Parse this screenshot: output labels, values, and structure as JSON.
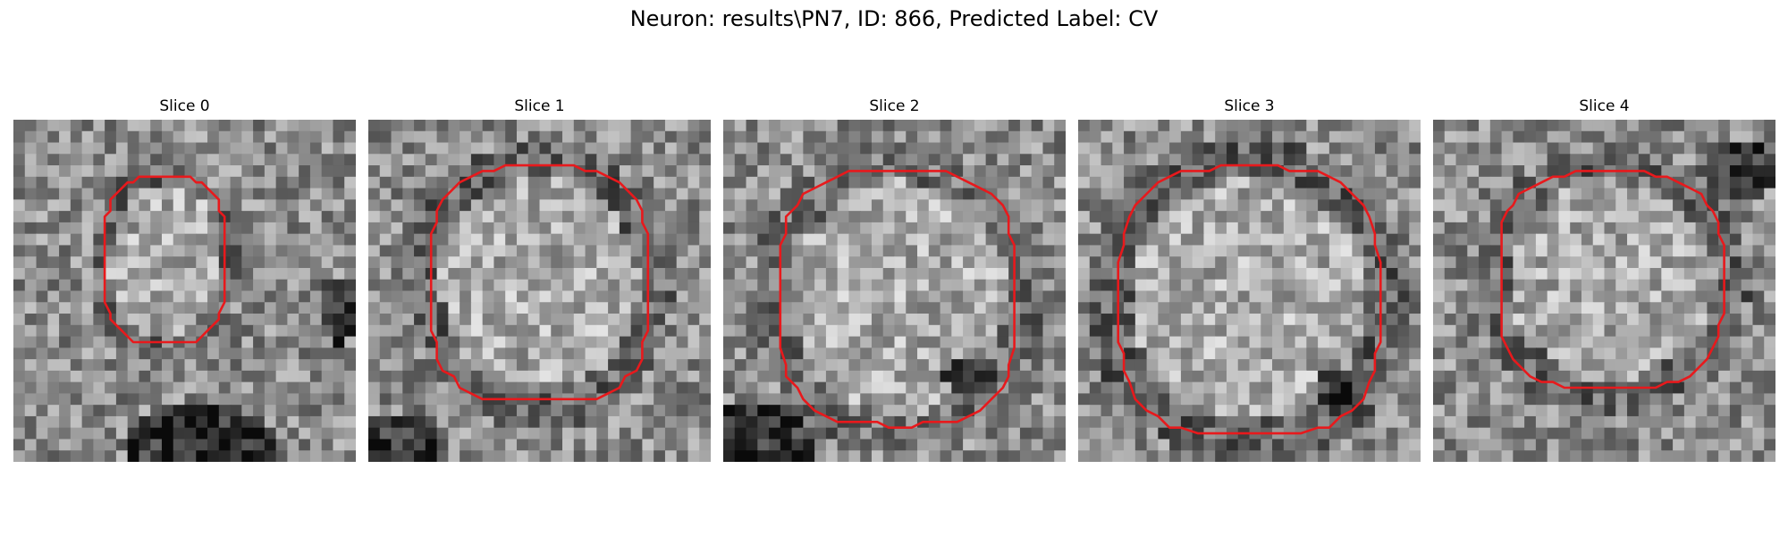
{
  "figure": {
    "title": "Neuron: results\\PN7, ID: 866, Predicted Label: CV"
  },
  "slices": [
    {
      "title": "Slice 0",
      "contour_color": "#e8191c"
    },
    {
      "title": "Slice 1",
      "contour_color": "#e8191c"
    },
    {
      "title": "Slice 2",
      "contour_color": "#e8191c"
    },
    {
      "title": "Slice 3",
      "contour_color": "#e8191c"
    },
    {
      "title": "Slice 4",
      "contour_color": "#e8191c"
    }
  ],
  "colors": {
    "background": "#ffffff",
    "contour": "#e8191c"
  }
}
